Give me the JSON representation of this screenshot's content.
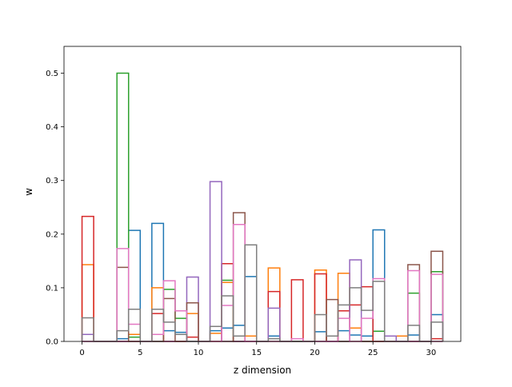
{
  "chart_data": {
    "type": "bar",
    "style": "step-histogram",
    "xlabel": "z dimension",
    "ylabel": "w",
    "xlim": [
      -1.55,
      32.55
    ],
    "ylim": [
      0,
      0.55
    ],
    "xticks": [
      0,
      5,
      10,
      15,
      20,
      25,
      30
    ],
    "yticks": [
      0.0,
      0.1,
      0.2,
      0.3,
      0.4,
      0.5
    ],
    "grid": false,
    "legend": "none",
    "series": [
      {
        "color": "#1f77b4",
        "bins": [
          [
            3,
            0.005
          ],
          [
            4,
            0.207
          ],
          [
            6,
            0.22
          ],
          [
            7,
            0.02
          ],
          [
            8,
            0.017
          ],
          [
            11,
            0.02
          ],
          [
            12,
            0.025
          ],
          [
            13,
            0.03
          ],
          [
            14,
            0.121
          ],
          [
            16,
            0.01
          ],
          [
            20,
            0.018
          ],
          [
            22,
            0.02
          ],
          [
            23,
            0.012
          ],
          [
            24,
            0.01
          ],
          [
            25,
            0.208
          ],
          [
            28,
            0.012
          ],
          [
            30,
            0.05
          ]
        ]
      },
      {
        "color": "#ff7f0e",
        "bins": [
          [
            0,
            0.143
          ],
          [
            4,
            0.013
          ],
          [
            6,
            0.1
          ],
          [
            9,
            0.052
          ],
          [
            11,
            0.015
          ],
          [
            12,
            0.11
          ],
          [
            14,
            0.01
          ],
          [
            16,
            0.137
          ],
          [
            20,
            0.133
          ],
          [
            22,
            0.127
          ],
          [
            23,
            0.025
          ],
          [
            27,
            0.01
          ]
        ]
      },
      {
        "color": "#2ca02c",
        "bins": [
          [
            3,
            0.5
          ],
          [
            4,
            0.008
          ],
          [
            7,
            0.097
          ],
          [
            8,
            0.043
          ],
          [
            12,
            0.114
          ],
          [
            25,
            0.019
          ],
          [
            28,
            0.09
          ],
          [
            30,
            0.13
          ]
        ]
      },
      {
        "color": "#d62728",
        "bins": [
          [
            0,
            0.233
          ],
          [
            6,
            0.052
          ],
          [
            9,
            0.008
          ],
          [
            12,
            0.145
          ],
          [
            16,
            0.093
          ],
          [
            18,
            0.115
          ],
          [
            20,
            0.126
          ],
          [
            22,
            0.057
          ],
          [
            23,
            0.068
          ],
          [
            24,
            0.102
          ],
          [
            30,
            0.005
          ]
        ]
      },
      {
        "color": "#9467bd",
        "bins": [
          [
            0,
            0.013
          ],
          [
            9,
            0.12
          ],
          [
            11,
            0.298
          ],
          [
            16,
            0.062
          ],
          [
            23,
            0.152
          ],
          [
            26,
            0.01
          ]
        ]
      },
      {
        "color": "#8c564b",
        "bins": [
          [
            3,
            0.138
          ],
          [
            7,
            0.08
          ],
          [
            9,
            0.072
          ],
          [
            13,
            0.24
          ],
          [
            21,
            0.078
          ],
          [
            28,
            0.143
          ],
          [
            30,
            0.168
          ]
        ]
      },
      {
        "color": "#e377c2",
        "bins": [
          [
            3,
            0.173
          ],
          [
            4,
            0.032
          ],
          [
            6,
            0.013
          ],
          [
            7,
            0.113
          ],
          [
            8,
            0.057
          ],
          [
            12,
            0.067
          ],
          [
            13,
            0.218
          ],
          [
            18,
            0.005
          ],
          [
            22,
            0.043
          ],
          [
            24,
            0.043
          ],
          [
            25,
            0.117
          ],
          [
            28,
            0.132
          ],
          [
            30,
            0.125
          ]
        ]
      },
      {
        "color": "#7f7f7f",
        "bins": [
          [
            0,
            0.044
          ],
          [
            3,
            0.02
          ],
          [
            4,
            0.06
          ],
          [
            6,
            0.06
          ],
          [
            7,
            0.036
          ],
          [
            8,
            0.013
          ],
          [
            11,
            0.028
          ],
          [
            12,
            0.085
          ],
          [
            13,
            0.01
          ],
          [
            14,
            0.18
          ],
          [
            16,
            0.005
          ],
          [
            20,
            0.05
          ],
          [
            21,
            0.01
          ],
          [
            22,
            0.068
          ],
          [
            23,
            0.1
          ],
          [
            24,
            0.058
          ],
          [
            25,
            0.112
          ],
          [
            28,
            0.03
          ],
          [
            30,
            0.036
          ]
        ]
      }
    ]
  }
}
